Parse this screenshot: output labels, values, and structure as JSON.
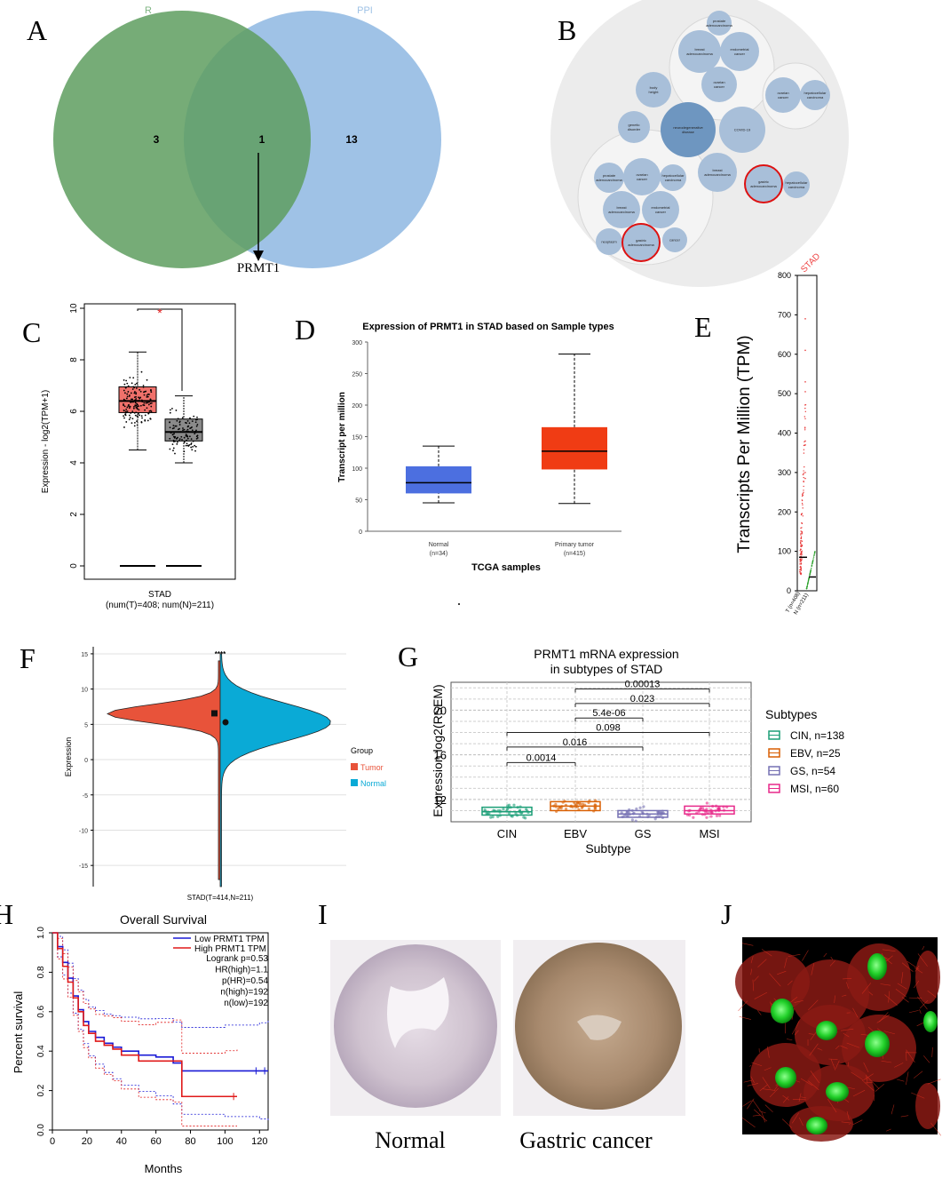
{
  "panel_labels": [
    "A",
    "B",
    "C",
    "D",
    "E",
    "F",
    "G",
    "H",
    "I",
    "J"
  ],
  "panelA": {
    "set_left": "R",
    "set_right": "PPI",
    "left_only": "3",
    "overlap": "1",
    "right_only": "13",
    "gene": "PRMT1",
    "colors": {
      "left": "#5e9d5f",
      "right": "#9fc2e6"
    }
  },
  "panelB": {
    "circles": [
      "prostate adenocarcinoma",
      "breast adenocarcinoma",
      "endometrial cancer",
      "ovarian cancer",
      "ovarian cancer",
      "hepatocellular carcinoma",
      "body height",
      "genetic disorder",
      "neurodegenerative disease",
      "COVID-19",
      "breast adenocarcinoma",
      "gastric adenocarcinoma",
      "hepatocellular carcinoma",
      "prostate adenocarcinoma",
      "ovarian cancer",
      "hepatocellular carcinoma",
      "breast adenocarcinoma",
      "endometrial cancer",
      "neoplasm",
      "gastric adenocarcinoma",
      "cancer"
    ]
  },
  "panelI": {
    "normal_label": "Normal",
    "tumor_label": "Gastric cancer"
  },
  "chart_data": [
    {
      "id": "C",
      "type": "box",
      "categories": [
        "Tumor",
        "Normal"
      ],
      "boxes": [
        {
          "name": "Tumor",
          "q1": 5.95,
          "median": 6.4,
          "q3": 6.95,
          "whisker_low": 4.5,
          "whisker_high": 8.3,
          "color": "#f0716b"
        },
        {
          "name": "Normal",
          "q1": 4.85,
          "median": 5.2,
          "q3": 5.7,
          "whisker_low": 4.0,
          "whisker_high": 6.6,
          "color": "#8a8a8a"
        }
      ],
      "ylim": [
        0,
        10
      ],
      "yticks": [
        "0",
        "2",
        "4",
        "6",
        "8",
        "10"
      ],
      "ylabel": "Expression - log2(TPM+1)",
      "xlabel": "STAD",
      "xlabel2": "(num(T)=408; num(N)=211)",
      "significance": "*"
    },
    {
      "id": "D",
      "type": "box",
      "title": "Expression of PRMT1 in STAD based on Sample types",
      "categories": [
        "Normal",
        "Primary tumor"
      ],
      "category_n": [
        "(n=34)",
        "(n=415)"
      ],
      "boxes": [
        {
          "name": "Normal",
          "q1": 60,
          "median": 77,
          "q3": 103,
          "whisker_low": 45,
          "whisker_high": 135,
          "color": "#4c6fe0"
        },
        {
          "name": "Primary tumor",
          "q1": 98,
          "median": 127,
          "q3": 165,
          "whisker_low": 44,
          "whisker_high": 281,
          "color": "#f03c14"
        }
      ],
      "ylim": [
        0,
        300
      ],
      "yticks": [
        "0",
        "50",
        "100",
        "150",
        "200",
        "250",
        "300"
      ],
      "ylabel": "Transcript per million",
      "xlabel": "TCGA samples"
    },
    {
      "id": "E",
      "type": "scatter",
      "title": "STAD",
      "ylabel": "Transcripts Per Million (TPM)",
      "ylim": [
        0,
        800
      ],
      "yticks": [
        "0",
        "100",
        "200",
        "300",
        "400",
        "500",
        "600",
        "700",
        "800"
      ],
      "categories": [
        "T (n=408)",
        "N (n=211)"
      ],
      "medians": [
        85,
        35
      ]
    },
    {
      "id": "F",
      "type": "violin",
      "significance": "****",
      "ylabel": "Expression",
      "xlabel": "STAD(T=414,N=211)",
      "ylim": [
        -18,
        16
      ],
      "yticks": [
        "15",
        "10",
        "5",
        "0",
        "-5",
        "-10",
        "-15"
      ],
      "legend_title": "Group",
      "legend": [
        {
          "name": "Tumor",
          "color": "#e8533a"
        },
        {
          "name": "Normal",
          "color": "#0aaad6"
        }
      ],
      "means": {
        "Tumor": 6.5,
        "Normal": 5.3
      }
    },
    {
      "id": "G",
      "type": "box",
      "title": "PRMT1 mRNA expression",
      "title2": "in subtypes of STAD",
      "categories": [
        "CIN",
        "EBV",
        "GS",
        "MSI"
      ],
      "boxes": [
        {
          "name": "CIN",
          "q1": 10.6,
          "median": 10.9,
          "q3": 11.3,
          "color": "#1b9e77"
        },
        {
          "name": "EBV",
          "q1": 11.0,
          "median": 11.4,
          "q3": 11.8,
          "color": "#d95f02"
        },
        {
          "name": "GS",
          "q1": 10.4,
          "median": 10.7,
          "q3": 11.0,
          "color": "#7570b3"
        },
        {
          "name": "MSI",
          "q1": 10.7,
          "median": 11.0,
          "q3": 11.4,
          "color": "#e7298a"
        }
      ],
      "ylim": [
        10,
        22.5
      ],
      "yticks": [
        "12",
        "16",
        "20"
      ],
      "ylabel": "Expression log2(RSEM)",
      "xlabel": "Subtype",
      "comparisons": [
        {
          "a": 0,
          "b": 1,
          "p": "0.0014",
          "y": 15.3
        },
        {
          "a": 0,
          "b": 2,
          "p": "0.016",
          "y": 16.7
        },
        {
          "a": 0,
          "b": 3,
          "p": "0.098",
          "y": 18.0
        },
        {
          "a": 1,
          "b": 2,
          "p": "5.4e-06",
          "y": 19.3
        },
        {
          "a": 1,
          "b": 3,
          "p": "0.023",
          "y": 20.6
        },
        {
          "a": 1,
          "b": 3,
          "p": "0.00013",
          "y": 21.9
        }
      ],
      "legend_title": "Subtypes",
      "legend": [
        "CIN, n=138",
        "EBV, n=25",
        "GS, n=54",
        "MSI, n=60"
      ]
    },
    {
      "id": "H",
      "type": "line",
      "title": "Overall Survival",
      "xlabel": "Months",
      "ylabel": "Percent survival",
      "xlim": [
        0,
        125
      ],
      "ylim": [
        0,
        1
      ],
      "xticks": [
        "0",
        "20",
        "40",
        "60",
        "80",
        "100",
        "120"
      ],
      "yticks": [
        "0.0",
        "0.2",
        "0.4",
        "0.6",
        "0.8",
        "1.0"
      ],
      "series": [
        {
          "name": "Low PRMT1 TPM",
          "color": "#1a1ad6",
          "x": [
            0,
            3,
            6,
            9,
            12,
            15,
            18,
            21,
            25,
            30,
            35,
            40,
            50,
            60,
            70,
            75,
            100,
            120,
            125
          ],
          "y": [
            1.0,
            0.93,
            0.85,
            0.77,
            0.68,
            0.61,
            0.55,
            0.5,
            0.47,
            0.44,
            0.42,
            0.4,
            0.38,
            0.37,
            0.34,
            0.3,
            0.3,
            0.3,
            0.3
          ]
        },
        {
          "name": "High PRMT1 TPM",
          "color": "#e01a1a",
          "x": [
            0,
            3,
            6,
            9,
            12,
            15,
            18,
            21,
            25,
            30,
            35,
            40,
            50,
            60,
            70,
            75,
            100,
            107
          ],
          "y": [
            1.0,
            0.92,
            0.83,
            0.75,
            0.67,
            0.6,
            0.53,
            0.49,
            0.45,
            0.43,
            0.41,
            0.38,
            0.35,
            0.35,
            0.35,
            0.17,
            0.17,
            0.17
          ]
        }
      ],
      "stats": [
        "Logrank p=0.53",
        "HR(high)=1.1",
        "p(HR)=0.54",
        "n(high)=192",
        "n(low)=192"
      ]
    }
  ]
}
